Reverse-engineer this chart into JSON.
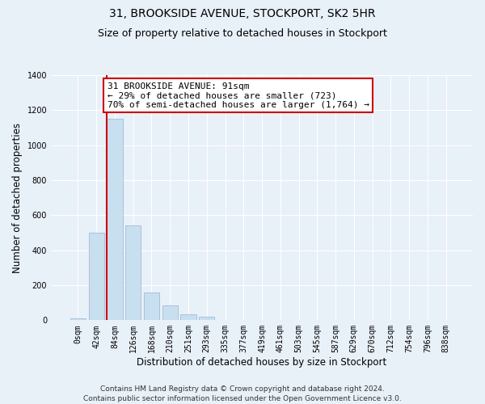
{
  "title": "31, BROOKSIDE AVENUE, STOCKPORT, SK2 5HR",
  "subtitle": "Size of property relative to detached houses in Stockport",
  "xlabel": "Distribution of detached houses by size in Stockport",
  "ylabel": "Number of detached properties",
  "bar_labels": [
    "0sqm",
    "42sqm",
    "84sqm",
    "126sqm",
    "168sqm",
    "210sqm",
    "251sqm",
    "293sqm",
    "335sqm",
    "377sqm",
    "419sqm",
    "461sqm",
    "503sqm",
    "545sqm",
    "587sqm",
    "629sqm",
    "670sqm",
    "712sqm",
    "754sqm",
    "796sqm",
    "838sqm"
  ],
  "bar_values": [
    10,
    500,
    1150,
    540,
    160,
    85,
    35,
    20,
    0,
    0,
    0,
    0,
    0,
    0,
    0,
    0,
    0,
    0,
    0,
    0,
    0
  ],
  "bar_color": "#c8dff0",
  "bar_edge_color": "#a0bcd8",
  "highlight_bar_index": 2,
  "highlight_color": "#cc0000",
  "ylim": [
    0,
    1400
  ],
  "yticks": [
    0,
    200,
    400,
    600,
    800,
    1000,
    1200,
    1400
  ],
  "annotation_line1": "31 BROOKSIDE AVENUE: 91sqm",
  "annotation_line2": "← 29% of detached houses are smaller (723)",
  "annotation_line3": "70% of semi-detached houses are larger (1,764) →",
  "annotation_box_color": "#ffffff",
  "annotation_box_edge": "#cc0000",
  "footer_line1": "Contains HM Land Registry data © Crown copyright and database right 2024.",
  "footer_line2": "Contains public sector information licensed under the Open Government Licence v3.0.",
  "background_color": "#e8f0f8",
  "plot_bg_color": "#e8f0f8",
  "grid_color": "#ffffff",
  "title_fontsize": 10,
  "subtitle_fontsize": 9,
  "axis_label_fontsize": 8.5,
  "tick_fontsize": 7,
  "annotation_fontsize": 8,
  "footer_fontsize": 6.5
}
